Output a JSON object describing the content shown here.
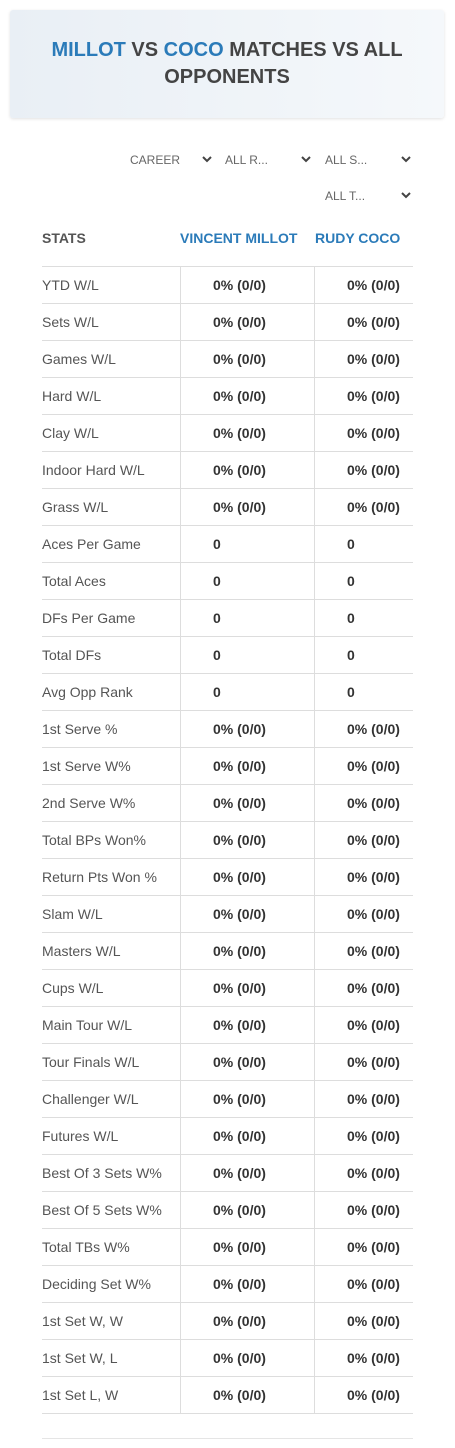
{
  "header": {
    "title_parts": [
      "MILLOT",
      " VS ",
      "COCO",
      " MATCHES VS ALL OPPONENTS"
    ]
  },
  "filters": [
    "CAREER",
    "ALL R...",
    "ALL S...",
    "ALL T..."
  ],
  "table": {
    "columns": [
      "STATS",
      "VINCENT MILLOT",
      "RUDY COCO"
    ],
    "rows": [
      [
        "YTD W/L",
        "0% (0/0)",
        "0% (0/0)"
      ],
      [
        "Sets W/L",
        "0% (0/0)",
        "0% (0/0)"
      ],
      [
        "Games W/L",
        "0% (0/0)",
        "0% (0/0)"
      ],
      [
        "Hard W/L",
        "0% (0/0)",
        "0% (0/0)"
      ],
      [
        "Clay W/L",
        "0% (0/0)",
        "0% (0/0)"
      ],
      [
        "Indoor Hard W/L",
        "0% (0/0)",
        "0% (0/0)"
      ],
      [
        "Grass W/L",
        "0% (0/0)",
        "0% (0/0)"
      ],
      [
        "Aces Per Game",
        "0",
        "0"
      ],
      [
        "Total Aces",
        "0",
        "0"
      ],
      [
        "DFs Per Game",
        "0",
        "0"
      ],
      [
        "Total DFs",
        "0",
        "0"
      ],
      [
        "Avg Opp Rank",
        "0",
        "0"
      ],
      [
        "1st Serve %",
        "0% (0/0)",
        "0% (0/0)"
      ],
      [
        "1st Serve W%",
        "0% (0/0)",
        "0% (0/0)"
      ],
      [
        "2nd Serve W%",
        "0% (0/0)",
        "0% (0/0)"
      ],
      [
        "Total BPs Won%",
        "0% (0/0)",
        "0% (0/0)"
      ],
      [
        "Return Pts Won %",
        "0% (0/0)",
        "0% (0/0)"
      ],
      [
        "Slam W/L",
        "0% (0/0)",
        "0% (0/0)"
      ],
      [
        "Masters W/L",
        "0% (0/0)",
        "0% (0/0)"
      ],
      [
        "Cups W/L",
        "0% (0/0)",
        "0% (0/0)"
      ],
      [
        "Main Tour W/L",
        "0% (0/0)",
        "0% (0/0)"
      ],
      [
        "Tour Finals W/L",
        "0% (0/0)",
        "0% (0/0)"
      ],
      [
        "Challenger W/L",
        "0% (0/0)",
        "0% (0/0)"
      ],
      [
        "Futures W/L",
        "0% (0/0)",
        "0% (0/0)"
      ],
      [
        "Best Of 3 Sets W%",
        "0% (0/0)",
        "0% (0/0)"
      ],
      [
        "Best Of 5 Sets W%",
        "0% (0/0)",
        "0% (0/0)"
      ],
      [
        "Total TBs W%",
        "0% (0/0)",
        "0% (0/0)"
      ],
      [
        "Deciding Set W%",
        "0% (0/0)",
        "0% (0/0)"
      ],
      [
        "1st Set W, W",
        "0% (0/0)",
        "0% (0/0)"
      ],
      [
        "1st Set W, L",
        "0% (0/0)",
        "0% (0/0)"
      ],
      [
        "1st Set L, W",
        "0% (0/0)",
        "0% (0/0)"
      ]
    ]
  }
}
